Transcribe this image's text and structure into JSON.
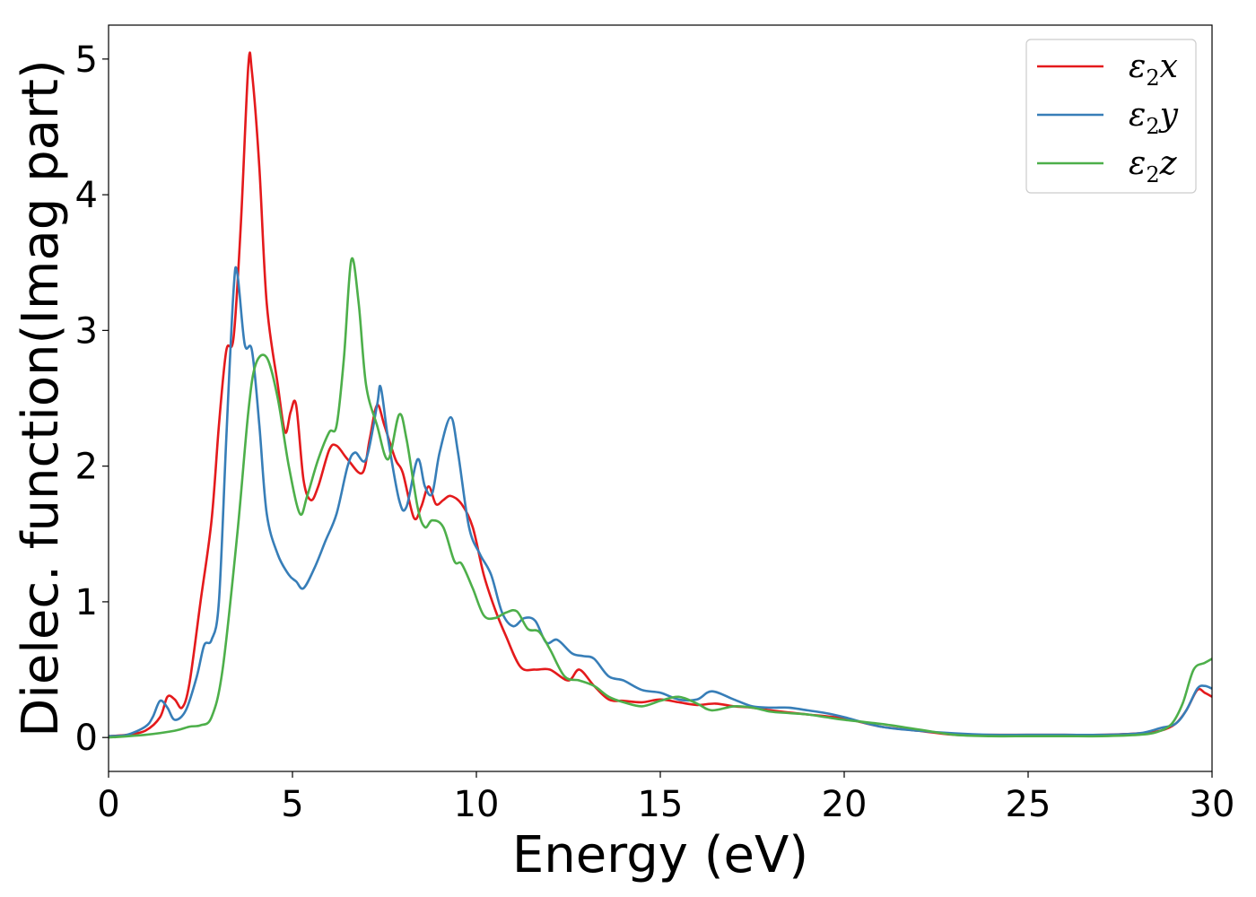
{
  "chart_data": {
    "type": "line",
    "title": "",
    "xlabel": "Energy (eV)",
    "ylabel": "Dielec. function(Imag part)",
    "xlim": [
      0,
      30
    ],
    "ylim": [
      -0.25,
      5.25
    ],
    "xticks": [
      0,
      5,
      10,
      15,
      20,
      25,
      30
    ],
    "yticks": [
      0,
      1,
      2,
      3,
      4,
      5
    ],
    "grid": false,
    "legend_position": "top-right",
    "series": [
      {
        "name": "ε2x",
        "legend_base": "ε",
        "legend_sub": "2",
        "legend_suffix": "x",
        "color": "#e41a1c",
        "x": [
          0,
          0.5,
          1.0,
          1.4,
          1.6,
          1.8,
          2.0,
          2.2,
          2.5,
          2.8,
          3.0,
          3.2,
          3.4,
          3.6,
          3.8,
          3.9,
          4.1,
          4.3,
          4.6,
          4.8,
          4.95,
          5.1,
          5.3,
          5.5,
          5.7,
          6.0,
          6.2,
          6.5,
          6.9,
          7.1,
          7.3,
          7.5,
          7.8,
          8.0,
          8.3,
          8.5,
          8.7,
          8.9,
          9.1,
          9.3,
          9.6,
          9.9,
          10.2,
          10.5,
          10.8,
          11.2,
          11.6,
          12.0,
          12.5,
          12.8,
          13.2,
          13.6,
          14.0,
          14.5,
          15.0,
          15.5,
          16.0,
          16.5,
          17.0,
          17.5,
          18.0,
          19.0,
          20.0,
          21.0,
          22.0,
          23.0,
          24.0,
          25.0,
          26.0,
          27.0,
          28.0,
          28.6,
          29.0,
          29.3,
          29.6,
          29.8,
          30.0
        ],
        "y": [
          0.01,
          0.02,
          0.05,
          0.15,
          0.3,
          0.28,
          0.22,
          0.4,
          1.0,
          1.6,
          2.3,
          2.85,
          2.95,
          3.8,
          4.95,
          4.9,
          4.2,
          3.2,
          2.6,
          2.25,
          2.4,
          2.45,
          1.9,
          1.75,
          1.85,
          2.12,
          2.15,
          2.05,
          1.95,
          2.2,
          2.45,
          2.3,
          2.05,
          1.95,
          1.62,
          1.7,
          1.85,
          1.72,
          1.75,
          1.78,
          1.72,
          1.55,
          1.2,
          0.95,
          0.75,
          0.52,
          0.5,
          0.5,
          0.42,
          0.5,
          0.38,
          0.28,
          0.27,
          0.26,
          0.28,
          0.26,
          0.24,
          0.25,
          0.23,
          0.22,
          0.2,
          0.17,
          0.14,
          0.08,
          0.05,
          0.02,
          0.02,
          0.02,
          0.02,
          0.02,
          0.03,
          0.05,
          0.1,
          0.2,
          0.35,
          0.33,
          0.3
        ]
      },
      {
        "name": "ε2y",
        "legend_base": "ε",
        "legend_sub": "2",
        "legend_suffix": "y",
        "color": "#377eb8",
        "x": [
          0,
          0.5,
          1.0,
          1.2,
          1.4,
          1.6,
          1.8,
          2.1,
          2.4,
          2.6,
          2.8,
          3.0,
          3.2,
          3.4,
          3.5,
          3.7,
          3.9,
          4.1,
          4.3,
          4.6,
          4.9,
          5.1,
          5.3,
          5.6,
          5.9,
          6.2,
          6.5,
          6.7,
          7.0,
          7.3,
          7.4,
          7.6,
          7.9,
          8.1,
          8.4,
          8.6,
          8.8,
          9.0,
          9.3,
          9.5,
          9.8,
          10.1,
          10.4,
          10.7,
          11.0,
          11.3,
          11.6,
          11.9,
          12.2,
          12.6,
          12.9,
          13.2,
          13.6,
          14.0,
          14.5,
          15.0,
          15.5,
          16.0,
          16.4,
          17.0,
          17.5,
          18.0,
          18.5,
          19.0,
          19.5,
          20.0,
          21.0,
          22.0,
          23.0,
          24.0,
          25.0,
          26.0,
          27.0,
          28.0,
          28.6,
          29.0,
          29.3,
          29.6,
          29.8,
          30.0
        ],
        "y": [
          0.01,
          0.02,
          0.08,
          0.15,
          0.27,
          0.22,
          0.13,
          0.2,
          0.45,
          0.68,
          0.72,
          1.0,
          2.2,
          3.3,
          3.42,
          2.9,
          2.85,
          2.3,
          1.65,
          1.35,
          1.2,
          1.15,
          1.1,
          1.25,
          1.45,
          1.65,
          2.0,
          2.1,
          2.05,
          2.45,
          2.58,
          2.2,
          1.75,
          1.7,
          2.05,
          1.85,
          1.8,
          2.1,
          2.36,
          2.1,
          1.55,
          1.35,
          1.2,
          0.92,
          0.82,
          0.88,
          0.86,
          0.7,
          0.72,
          0.62,
          0.6,
          0.58,
          0.45,
          0.42,
          0.35,
          0.33,
          0.28,
          0.28,
          0.34,
          0.28,
          0.23,
          0.22,
          0.22,
          0.2,
          0.18,
          0.15,
          0.08,
          0.05,
          0.03,
          0.02,
          0.02,
          0.02,
          0.02,
          0.03,
          0.07,
          0.1,
          0.2,
          0.36,
          0.38,
          0.36
        ]
      },
      {
        "name": "ε2z",
        "legend_base": "ε",
        "legend_sub": "2",
        "legend_suffix": "z",
        "color": "#4daf4a",
        "x": [
          0,
          1.0,
          1.8,
          2.2,
          2.5,
          2.8,
          3.1,
          3.5,
          3.8,
          4.0,
          4.3,
          4.6,
          4.9,
          5.2,
          5.4,
          5.7,
          6.0,
          6.2,
          6.4,
          6.6,
          6.8,
          7.0,
          7.3,
          7.6,
          7.9,
          8.1,
          8.4,
          8.6,
          8.8,
          9.1,
          9.4,
          9.6,
          9.9,
          10.2,
          10.5,
          10.8,
          11.1,
          11.4,
          11.7,
          12.0,
          12.4,
          12.8,
          13.2,
          13.6,
          14.0,
          14.5,
          15.0,
          15.5,
          16.0,
          16.4,
          17.0,
          17.5,
          18.0,
          18.5,
          19.0,
          19.5,
          20.0,
          21.0,
          22.0,
          23.0,
          24.0,
          25.0,
          26.0,
          27.0,
          28.0,
          28.5,
          28.9,
          29.2,
          29.5,
          29.8,
          30.0
        ],
        "y": [
          0.0,
          0.02,
          0.05,
          0.08,
          0.09,
          0.15,
          0.5,
          1.5,
          2.4,
          2.75,
          2.8,
          2.5,
          2.0,
          1.65,
          1.78,
          2.05,
          2.25,
          2.3,
          2.8,
          3.52,
          3.2,
          2.6,
          2.3,
          2.05,
          2.38,
          2.2,
          1.7,
          1.55,
          1.6,
          1.55,
          1.3,
          1.28,
          1.1,
          0.9,
          0.88,
          0.92,
          0.93,
          0.8,
          0.78,
          0.65,
          0.45,
          0.42,
          0.38,
          0.3,
          0.26,
          0.23,
          0.27,
          0.3,
          0.25,
          0.2,
          0.23,
          0.22,
          0.19,
          0.18,
          0.17,
          0.15,
          0.13,
          0.1,
          0.06,
          0.02,
          0.01,
          0.01,
          0.01,
          0.01,
          0.02,
          0.04,
          0.1,
          0.25,
          0.5,
          0.55,
          0.58
        ]
      }
    ]
  }
}
